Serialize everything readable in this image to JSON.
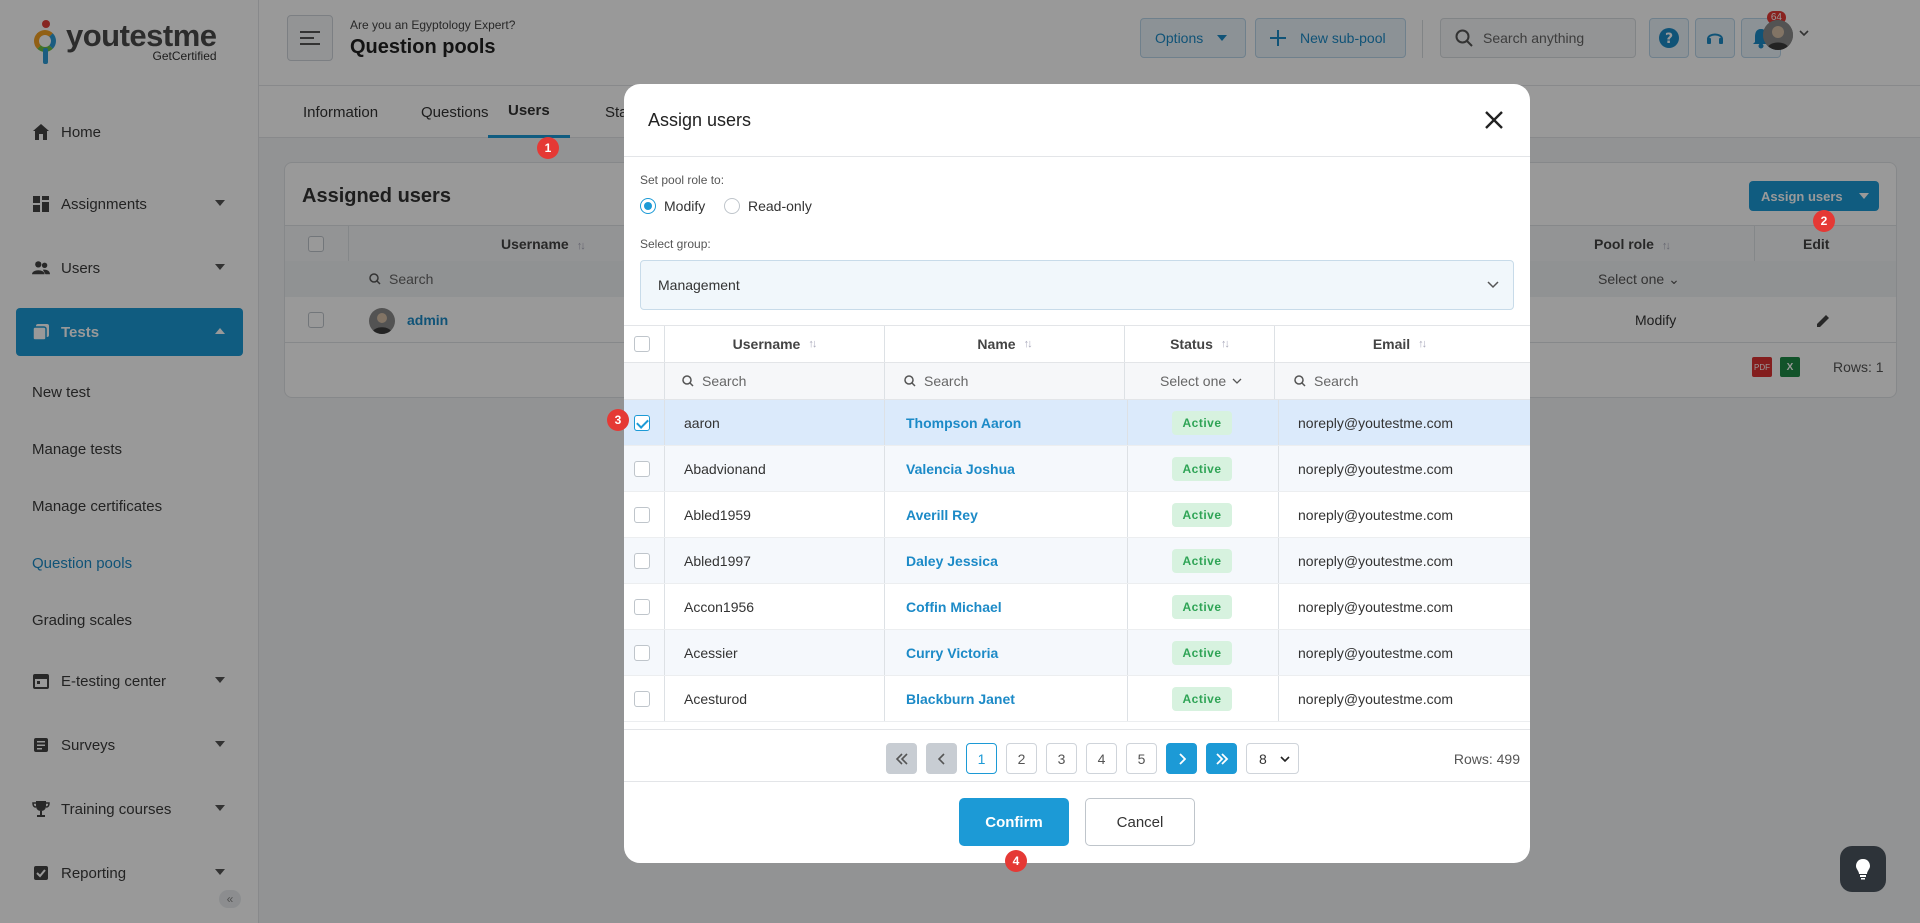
{
  "brand": {
    "name": "youtestme",
    "sub": "GetCertified"
  },
  "sidebar": {
    "items": [
      {
        "label": "Home",
        "icon": "home-icon"
      },
      {
        "label": "Assignments",
        "icon": "assignments-icon"
      },
      {
        "label": "Users",
        "icon": "users-icon"
      },
      {
        "label": "Tests",
        "icon": "tests-icon"
      }
    ],
    "sub_items": [
      "New test",
      "Manage tests",
      "Manage certificates",
      "Question pools",
      "Grading scales"
    ],
    "items_bottom": [
      {
        "label": "E-testing center",
        "icon": "etesting-icon"
      },
      {
        "label": "Surveys",
        "icon": "surveys-icon"
      },
      {
        "label": "Training courses",
        "icon": "trophy-icon"
      },
      {
        "label": "Reporting",
        "icon": "reporting-icon"
      }
    ]
  },
  "header": {
    "subtitle": "Are you an Egyptology Expert?",
    "title": "Question pools",
    "options_label": "Options",
    "new_subpool_label": "New sub-pool",
    "search_placeholder": "Search anything",
    "notifications_count": "64"
  },
  "tabs": [
    "Information",
    "Questions",
    "Users",
    "Sta"
  ],
  "card": {
    "title": "Assigned users",
    "assign_button": "Assign users",
    "col_username": "Username",
    "col_pool_role": "Pool role",
    "col_edit": "Edit",
    "search_placeholder": "Search",
    "select_one": "Select one",
    "row": {
      "username": "admin",
      "pool_role": "Modify"
    },
    "rows_label": "Rows: 1"
  },
  "modal": {
    "title": "Assign users",
    "role_label": "Set pool role to:",
    "role_options": [
      "Modify",
      "Read-only"
    ],
    "group_label": "Select group:",
    "group_value": "Management",
    "columns": {
      "username": "Username",
      "name": "Name",
      "status": "Status",
      "email": "Email"
    },
    "search_placeholder": "Search",
    "status_filter": "Select one",
    "rows": [
      {
        "username": "aaron",
        "name": "Thompson Aaron",
        "status": "Active",
        "email": "noreply@youtestme.com",
        "checked": true
      },
      {
        "username": "Abadvionand",
        "name": "Valencia Joshua",
        "status": "Active",
        "email": "noreply@youtestme.com",
        "checked": false
      },
      {
        "username": "Abled1959",
        "name": "Averill Rey",
        "status": "Active",
        "email": "noreply@youtestme.com",
        "checked": false
      },
      {
        "username": "Abled1997",
        "name": "Daley Jessica",
        "status": "Active",
        "email": "noreply@youtestme.com",
        "checked": false
      },
      {
        "username": "Accon1956",
        "name": "Coffin Michael",
        "status": "Active",
        "email": "noreply@youtestme.com",
        "checked": false
      },
      {
        "username": "Acessier",
        "name": "Curry Victoria",
        "status": "Active",
        "email": "noreply@youtestme.com",
        "checked": false
      },
      {
        "username": "Acesturod",
        "name": "Blackburn Janet",
        "status": "Active",
        "email": "noreply@youtestme.com",
        "checked": false
      }
    ],
    "pages": [
      "1",
      "2",
      "3",
      "4",
      "5"
    ],
    "rows_per_page": "8",
    "rows_count": "Rows: 499",
    "confirm_label": "Confirm",
    "cancel_label": "Cancel"
  },
  "markers": [
    "1",
    "2",
    "3",
    "4"
  ]
}
